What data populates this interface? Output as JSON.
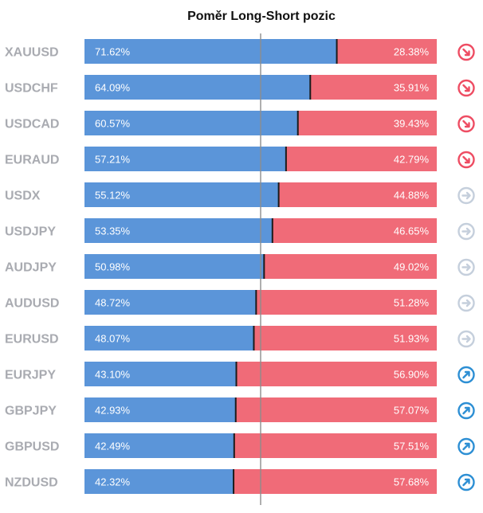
{
  "chart_data": {
    "type": "bar",
    "title": "Poměr Long-Short pozic",
    "stacked": true,
    "orientation": "horizontal",
    "xlim": [
      0,
      100
    ],
    "categories": [
      "XAUUSD",
      "USDCHF",
      "USDCAD",
      "EURAUD",
      "USDX",
      "USDJPY",
      "AUDJPY",
      "AUDUSD",
      "EURUSD",
      "EURJPY",
      "GBPJPY",
      "GBPUSD",
      "NZDUSD"
    ],
    "series": [
      {
        "key": "long",
        "color": "#5b95d9",
        "values": [
          71.62,
          64.09,
          60.57,
          57.21,
          55.12,
          53.35,
          50.98,
          48.72,
          48.07,
          43.1,
          42.93,
          42.49,
          42.32
        ]
      },
      {
        "key": "short",
        "color": "#f06b78",
        "values": [
          28.38,
          35.91,
          39.43,
          42.79,
          44.88,
          46.65,
          49.02,
          51.28,
          51.93,
          56.9,
          57.07,
          57.51,
          57.68
        ]
      }
    ],
    "long_labels": [
      "71.62%",
      "64.09%",
      "60.57%",
      "57.21%",
      "55.12%",
      "53.35%",
      "50.98%",
      "48.72%",
      "48.07%",
      "43.10%",
      "42.93%",
      "42.49%",
      "42.32%"
    ],
    "short_labels": [
      "28.38%",
      "35.91%",
      "39.43%",
      "42.79%",
      "44.88%",
      "46.65%",
      "49.02%",
      "51.28%",
      "51.93%",
      "56.90%",
      "57.07%",
      "57.51%",
      "57.68%"
    ],
    "trend_icons": [
      "arrow-down-right-icon",
      "arrow-down-right-icon",
      "arrow-down-right-icon",
      "arrow-down-right-icon",
      "arrow-right-icon",
      "arrow-right-icon",
      "arrow-right-icon",
      "arrow-right-icon",
      "arrow-right-icon",
      "arrow-up-right-icon",
      "arrow-up-right-icon",
      "arrow-up-right-icon",
      "arrow-up-right-icon"
    ],
    "center_line_value": 50,
    "colors": {
      "long": "#5b95d9",
      "short": "#f06b78",
      "down": "#ee4d63",
      "neutral": "#c5cfdc",
      "up": "#2d8fd4",
      "label": "#a9abb1",
      "center_line": "#8d8d8d"
    }
  }
}
